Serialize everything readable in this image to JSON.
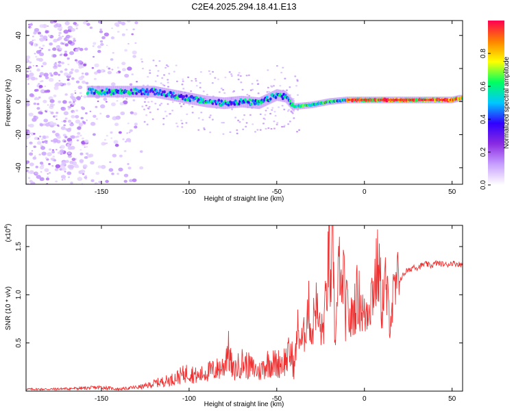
{
  "page_title": "C2E4.2025.294.18.41.E13",
  "chart_data": [
    {
      "type": "heatmap",
      "title": "C2E4.2025.294.18.41.E13",
      "xlabel": "Height of straight line (km)",
      "ylabel": "Frequency (Hz)",
      "xlim": [
        -193,
        56
      ],
      "ylim": [
        -50,
        49
      ],
      "xticks": [
        -150,
        -100,
        -50,
        0,
        50
      ],
      "xtick_labels": [
        "-150",
        "-100",
        "-50",
        "0",
        "50"
      ],
      "yticks": [
        -40,
        -20,
        0,
        20,
        40
      ],
      "ytick_labels": [
        "-40",
        "-20",
        "0",
        "20",
        "40"
      ],
      "colorbar": {
        "label": "Normalized spectral amplitude",
        "range": [
          0,
          1
        ],
        "ticks": [
          0.0,
          0.2,
          0.4,
          0.6,
          0.8
        ],
        "tick_labels": [
          "0.0",
          "0.2",
          "0.4",
          "0.6",
          "0.8"
        ],
        "colormap": [
          "#ffffff",
          "#c8a0ff",
          "#8a2be2",
          "#3000ff",
          "#00c8ff",
          "#00ff60",
          "#ffff00",
          "#ff8000",
          "#ff0050"
        ]
      },
      "ridge": {
        "description_free": true,
        "points": [
          [
            -158,
            6
          ],
          [
            -140,
            6
          ],
          [
            -120,
            6
          ],
          [
            -110,
            4
          ],
          [
            -100,
            2
          ],
          [
            -90,
            0
          ],
          [
            -80,
            -1
          ],
          [
            -70,
            0
          ],
          [
            -60,
            -1
          ],
          [
            -50,
            4
          ],
          [
            -45,
            3
          ],
          [
            -40,
            -3
          ],
          [
            -30,
            -2
          ],
          [
            -20,
            0
          ],
          [
            -10,
            1
          ],
          [
            0,
            1
          ],
          [
            10,
            1
          ],
          [
            20,
            1
          ],
          [
            30,
            1
          ],
          [
            40,
            1
          ],
          [
            50,
            1
          ],
          [
            54,
            2
          ]
        ]
      }
    },
    {
      "type": "line",
      "xlabel": "Height of straight line (km)",
      "ylabel": "SNR (10 * v/v)",
      "exponent_label": "(x10",
      "exponent_power": "4",
      "exponent_close": ")",
      "xlim": [
        -193,
        56
      ],
      "ylim": [
        0,
        1.72
      ],
      "xticks": [
        -150,
        -100,
        -50,
        0,
        50
      ],
      "xtick_labels": [
        "-150",
        "-100",
        "-50",
        "0",
        "50"
      ],
      "yticks": [
        0.5,
        1.0,
        1.5
      ],
      "ytick_labels": [
        "0.5",
        "1.0",
        "1.5"
      ],
      "series": [
        {
          "name": "SNR",
          "color": "#ee3030",
          "x": [
            -193,
            -180,
            -160,
            -150,
            -140,
            -130,
            -125,
            -120,
            -115,
            -110,
            -105,
            -100,
            -95,
            -90,
            -85,
            -80,
            -78,
            -75,
            -70,
            -65,
            -60,
            -55,
            -50,
            -45,
            -42,
            -40,
            -38,
            -36,
            -34,
            -32,
            -30,
            -28,
            -26,
            -24,
            -22,
            -20,
            -19,
            -18,
            -17,
            -16,
            -15,
            -14,
            -13,
            -12,
            -11,
            -10,
            -8,
            -6,
            -4,
            -2,
            0,
            2,
            4,
            6,
            8,
            10,
            12,
            14,
            16,
            18,
            20,
            22,
            24,
            26,
            28,
            30,
            32,
            35,
            38,
            41,
            44,
            47,
            50,
            53,
            56
          ],
          "y": [
            0.02,
            0.02,
            0.03,
            0.04,
            0.02,
            0.04,
            0.05,
            0.08,
            0.1,
            0.12,
            0.16,
            0.2,
            0.15,
            0.2,
            0.22,
            0.26,
            0.45,
            0.2,
            0.3,
            0.25,
            0.2,
            0.3,
            0.28,
            0.32,
            0.4,
            0.25,
            0.65,
            0.5,
            0.6,
            0.9,
            0.55,
            0.95,
            0.7,
            0.6,
            0.9,
            1.5,
            0.8,
            1.75,
            0.6,
            0.7,
            1.1,
            1.4,
            0.8,
            1.35,
            0.75,
            0.9,
            0.7,
            0.85,
            1.0,
            0.9,
            0.75,
            0.9,
            1.0,
            1.15,
            1.3,
            0.9,
            1.1,
            0.8,
            0.9,
            1.05,
            1.15,
            1.2,
            1.25,
            1.25,
            1.3,
            1.28,
            1.3,
            1.32,
            1.3,
            1.33,
            1.32,
            1.31,
            1.33,
            1.32,
            1.31
          ]
        }
      ]
    }
  ]
}
